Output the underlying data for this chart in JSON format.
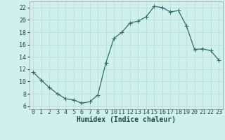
{
  "x": [
    0,
    1,
    2,
    3,
    4,
    5,
    6,
    7,
    8,
    9,
    10,
    11,
    12,
    13,
    14,
    15,
    16,
    17,
    18,
    19,
    20,
    21,
    22,
    23
  ],
  "y": [
    11.5,
    10.2,
    9.0,
    8.0,
    7.2,
    7.0,
    6.5,
    6.7,
    7.8,
    13.0,
    17.0,
    18.0,
    19.5,
    19.8,
    20.5,
    22.2,
    22.0,
    21.3,
    21.5,
    19.0,
    15.2,
    15.3,
    15.0,
    13.5
  ],
  "line_color": "#2e6e65",
  "marker": "+",
  "marker_size": 4,
  "bg_color": "#cff0ec",
  "grid_color": "#b8dbd6",
  "xlabel": "Humidex (Indice chaleur)",
  "xlabel_color": "#1a4a44",
  "xlabel_fontsize": 7,
  "ylabel_ticks": [
    6,
    8,
    10,
    12,
    14,
    16,
    18,
    20,
    22
  ],
  "xlim": [
    -0.5,
    23.5
  ],
  "ylim": [
    5.5,
    23.0
  ],
  "tick_fontsize": 6,
  "tick_color": "#1a4a44",
  "line_width": 0.9,
  "marker_color": "#2e6e65"
}
